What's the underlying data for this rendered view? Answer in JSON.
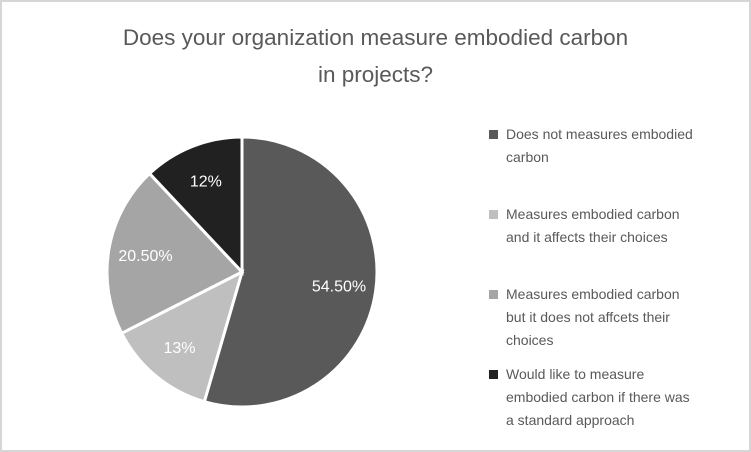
{
  "title": {
    "line1": "Does your organization measure embodied carbon",
    "line2": "in projects?"
  },
  "chart_data": {
    "type": "pie",
    "title": "Does your organization measure embodied carbon in projects?",
    "categories": [
      "Does not measures embodied carbon",
      "Measures embodied carbon and it affects their choices",
      "Measures embodied carbon but it does not affcets their choices",
      "Would like to measure embodied carbon if there was a standard approach"
    ],
    "values": [
      54.5,
      13,
      20.5,
      12
    ],
    "data_labels": [
      "54.50%",
      "13%",
      "20.50%",
      "12%"
    ],
    "colors": [
      "#595959",
      "#bfbfbf",
      "#a5a5a5",
      "#212121"
    ],
    "slice_border_color": "#ffffff",
    "data_label_color": "#ffffff",
    "start_angle_deg": 0,
    "direction": "clockwise",
    "legend_position": "right"
  },
  "legend": {
    "items": [
      {
        "label": "Does not measures embodied carbon",
        "color": "#595959"
      },
      {
        "label": "Measures embodied carbon and it affects their choices",
        "color": "#bfbfbf"
      },
      {
        "label": "Measures embodied carbon but it does not affcets their choices",
        "color": "#a5a5a5"
      },
      {
        "label": "Would like to measure embodied carbon if there was a standard approach",
        "color": "#212121"
      }
    ]
  },
  "colors": {
    "title_text": "#595959",
    "legend_text": "#595959",
    "frame_border": "#d6d6d6",
    "background": "#ffffff"
  }
}
